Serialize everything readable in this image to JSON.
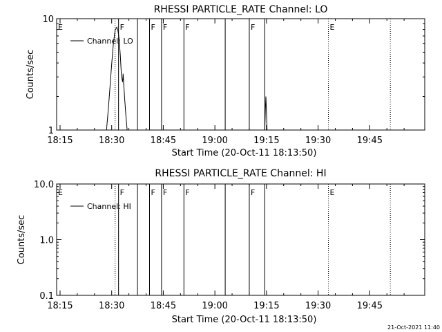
{
  "footer_timestamp": "21-Oct-2021 11:40",
  "chart_data": [
    {
      "type": "line",
      "title": "RHESSI PARTICLE_RATE Channel: LO",
      "xlabel": "Start Time (20-Oct-11 18:13:50)",
      "ylabel": "Counts/sec",
      "y_scale": "log",
      "xlim": [
        "18:14",
        "20:01"
      ],
      "ylim": [
        1,
        10
      ],
      "x_ticks": [
        "18:15",
        "18:30",
        "18:45",
        "19:00",
        "19:15",
        "19:30",
        "19:45"
      ],
      "y_ticks": [
        "1",
        "10"
      ],
      "legend": {
        "entries": [
          "Channel: LO"
        ],
        "placement": "top-left"
      },
      "series": [
        {
          "name": "Channel: LO",
          "x": [
            "18:28:30",
            "18:29:00",
            "18:29:30",
            "18:30:00",
            "18:30:30",
            "18:31:00",
            "18:31:30",
            "18:31:50",
            "18:32:10",
            "18:32:30",
            "18:32:50",
            "18:33:10",
            "18:33:20",
            "18:33:30",
            "18:33:50",
            "18:34:10",
            "18:34:30"
          ],
          "y": [
            1.0,
            1.5,
            2.4,
            3.9,
            6.0,
            7.9,
            8.4,
            7.8,
            6.6,
            4.7,
            3.1,
            2.7,
            3.2,
            2.6,
            1.8,
            1.3,
            1.0
          ]
        },
        {
          "name": "Channel: LO",
          "x": [
            "19:14:30",
            "19:14:40",
            "19:14:50",
            "19:15:00",
            "19:15:10"
          ],
          "y": [
            1.0,
            1.5,
            2.0,
            1.4,
            1.0
          ]
        }
      ],
      "markers": [
        {
          "t": "18:14:00",
          "label": "E",
          "style": "none"
        },
        {
          "t": "18:31:00",
          "label": "",
          "style": "dotted"
        },
        {
          "t": "18:32:00",
          "label": "F",
          "style": "solid"
        },
        {
          "t": "18:37:30",
          "label": "",
          "style": "solid"
        },
        {
          "t": "18:41:00",
          "label": "F",
          "style": "solid"
        },
        {
          "t": "18:44:30",
          "label": "F",
          "style": "solid"
        },
        {
          "t": "18:51:00",
          "label": "F",
          "style": "solid"
        },
        {
          "t": "19:03:00",
          "label": "",
          "style": "solid"
        },
        {
          "t": "19:10:00",
          "label": "F",
          "style": "solid"
        },
        {
          "t": "19:14:30",
          "label": "",
          "style": "solid"
        },
        {
          "t": "19:33:00",
          "label": "E",
          "style": "dotted"
        },
        {
          "t": "19:51:00",
          "label": "",
          "style": "dotted"
        }
      ]
    },
    {
      "type": "line",
      "title": "RHESSI PARTICLE_RATE Channel: HI",
      "xlabel": "Start Time (20-Oct-11 18:13:50)",
      "ylabel": "Counts/sec",
      "y_scale": "log",
      "xlim": [
        "18:14",
        "20:01"
      ],
      "ylim": [
        0.1,
        10.0
      ],
      "x_ticks": [
        "18:15",
        "18:30",
        "18:45",
        "19:00",
        "19:15",
        "19:30",
        "19:45"
      ],
      "y_ticks": [
        "0.1",
        "1.0",
        "10.0"
      ],
      "legend": {
        "entries": [
          "Channel: HI"
        ],
        "placement": "top-left"
      },
      "series": [],
      "markers": [
        {
          "t": "18:14:00",
          "label": "E",
          "style": "none"
        },
        {
          "t": "18:31:00",
          "label": "",
          "style": "dotted"
        },
        {
          "t": "18:32:00",
          "label": "F",
          "style": "solid"
        },
        {
          "t": "18:37:30",
          "label": "",
          "style": "solid"
        },
        {
          "t": "18:41:00",
          "label": "F",
          "style": "solid"
        },
        {
          "t": "18:44:30",
          "label": "F",
          "style": "solid"
        },
        {
          "t": "18:51:00",
          "label": "F",
          "style": "solid"
        },
        {
          "t": "19:03:00",
          "label": "",
          "style": "solid"
        },
        {
          "t": "19:10:00",
          "label": "F",
          "style": "solid"
        },
        {
          "t": "19:14:30",
          "label": "",
          "style": "solid"
        },
        {
          "t": "19:33:00",
          "label": "E",
          "style": "dotted"
        },
        {
          "t": "19:51:00",
          "label": "",
          "style": "dotted"
        }
      ]
    }
  ]
}
